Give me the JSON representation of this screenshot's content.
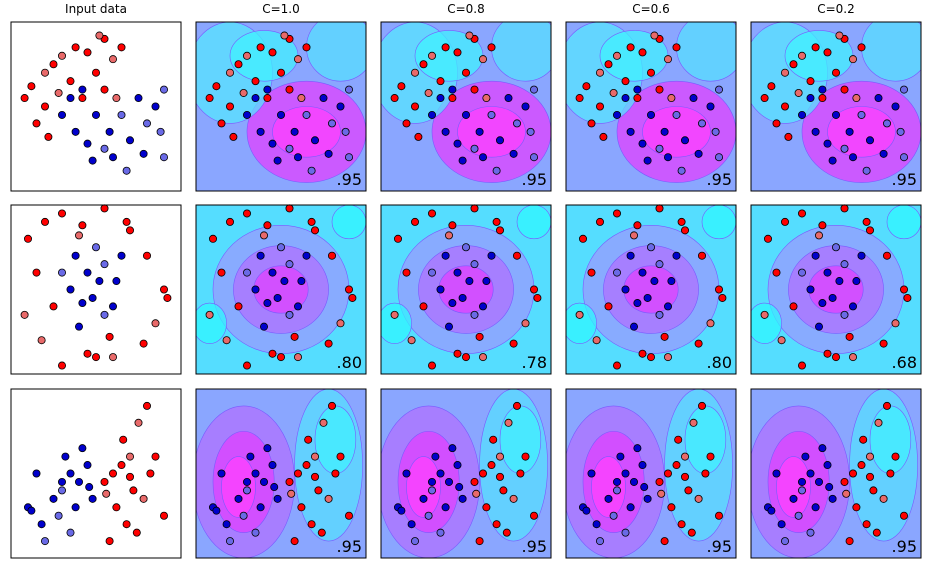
{
  "chart_data": {
    "type": "scatter-grid",
    "titles": [
      "Input data",
      "C=1.0",
      "C=0.8",
      "C=0.6",
      "C=0.2"
    ],
    "xlim": [
      0,
      1
    ],
    "ylim": [
      0,
      1
    ],
    "class_colors": [
      "#ff0000",
      "#e86a6a",
      "#0000cc",
      "#6a6ae6"
    ],
    "rows": [
      {
        "x": [
          0.08,
          0.12,
          0.2,
          0.25,
          0.3,
          0.38,
          0.45,
          0.55,
          0.6,
          0.5,
          0.35,
          0.2,
          0.15,
          0.22,
          0.55,
          0.62,
          0.42,
          0.28,
          0.52,
          0.65,
          0.3,
          0.38,
          0.45,
          0.55,
          0.6,
          0.7,
          0.8,
          0.85,
          0.9,
          0.75,
          0.65,
          0.5,
          0.42,
          0.58,
          0.9,
          0.68,
          0.48,
          0.35,
          0.78,
          0.88
        ],
        "y": [
          0.55,
          0.62,
          0.7,
          0.75,
          0.8,
          0.85,
          0.82,
          0.9,
          0.78,
          0.7,
          0.65,
          0.5,
          0.4,
          0.32,
          0.6,
          0.55,
          0.55,
          0.58,
          0.92,
          0.85,
          0.45,
          0.35,
          0.28,
          0.25,
          0.2,
          0.3,
          0.4,
          0.5,
          0.6,
          0.55,
          0.45,
          0.45,
          0.6,
          0.35,
          0.2,
          0.12,
          0.18,
          0.55,
          0.22,
          0.35
        ],
        "class": [
          0,
          0,
          1,
          0,
          1,
          0,
          0,
          0,
          1,
          0,
          0,
          0,
          0,
          0,
          0,
          1,
          0,
          1,
          1,
          0,
          2,
          2,
          2,
          3,
          2,
          2,
          3,
          2,
          3,
          2,
          3,
          2,
          2,
          2,
          3,
          3,
          2,
          2,
          2,
          3
        ],
        "scores": [
          ".95",
          ".95",
          ".95",
          ".95"
        ]
      },
      {
        "x": [
          0.1,
          0.2,
          0.15,
          0.3,
          0.4,
          0.55,
          0.7,
          0.8,
          0.9,
          0.85,
          0.92,
          0.78,
          0.6,
          0.45,
          0.3,
          0.18,
          0.08,
          0.25,
          0.68,
          0.42,
          0.5,
          0.58,
          0.4,
          0.35,
          0.45,
          0.55,
          0.62,
          0.5,
          0.38,
          0.6,
          0.48,
          0.55,
          0.42,
          0.3,
          0.65,
          0.52
        ],
        "y": [
          0.8,
          0.9,
          0.6,
          0.95,
          0.82,
          0.98,
          0.85,
          0.7,
          0.5,
          0.3,
          0.45,
          0.18,
          0.1,
          0.12,
          0.05,
          0.2,
          0.35,
          0.4,
          0.9,
          0.88,
          0.1,
          0.22,
          0.28,
          0.5,
          0.6,
          0.65,
          0.55,
          0.75,
          0.7,
          0.4,
          0.45,
          0.35,
          0.42,
          0.6,
          0.7,
          0.55
        ],
        "class": [
          0,
          0,
          0,
          0,
          1,
          0,
          0,
          0,
          0,
          1,
          0,
          0,
          1,
          0,
          0,
          1,
          1,
          0,
          0,
          0,
          0,
          0,
          2,
          2,
          2,
          3,
          2,
          3,
          2,
          2,
          2,
          3,
          2,
          3,
          2,
          2
        ],
        "scores": [
          ".80",
          ".78",
          ".80",
          ".68"
        ]
      },
      {
        "x": [
          0.1,
          0.18,
          0.25,
          0.3,
          0.35,
          0.4,
          0.45,
          0.38,
          0.28,
          0.2,
          0.15,
          0.42,
          0.32,
          0.48,
          0.35,
          0.12,
          0.3,
          0.46,
          0.55,
          0.6,
          0.65,
          0.7,
          0.75,
          0.8,
          0.85,
          0.62,
          0.68,
          0.72,
          0.58,
          0.78,
          0.9,
          0.66,
          0.74,
          0.82,
          0.56,
          0.7
        ],
        "y": [
          0.3,
          0.2,
          0.35,
          0.4,
          0.5,
          0.45,
          0.55,
          0.3,
          0.25,
          0.1,
          0.5,
          0.65,
          0.6,
          0.35,
          0.15,
          0.28,
          0.45,
          0.42,
          0.45,
          0.5,
          0.55,
          0.6,
          0.8,
          0.9,
          0.6,
          0.3,
          0.2,
          0.4,
          0.1,
          0.35,
          0.25,
          0.7,
          0.15,
          0.5,
          0.38,
          0.48
        ],
        "class": [
          2,
          2,
          2,
          3,
          2,
          2,
          2,
          2,
          3,
          3,
          2,
          2,
          2,
          2,
          3,
          2,
          2,
          2,
          0,
          0,
          0,
          1,
          1,
          0,
          0,
          0,
          0,
          0,
          0,
          1,
          0,
          0,
          0,
          0,
          1,
          0
        ],
        "scores": [
          ".95",
          ".95",
          ".95",
          ".95"
        ]
      }
    ]
  }
}
